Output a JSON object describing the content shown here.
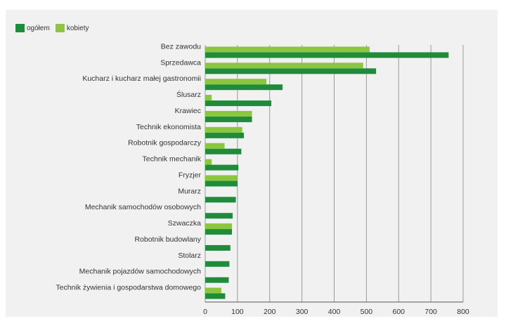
{
  "chart_data": {
    "type": "bar",
    "orientation": "horizontal",
    "categories": [
      "Bez zawodu",
      "Sprzedawca",
      "Kucharz i kucharz małej gastronomii",
      "Ślusarz",
      "Krawiec",
      "Technik ekonomista",
      "Robotnik gospodarczy",
      "Technik mechanik",
      "Fryzjer",
      "Murarz",
      "Mechanik samochodów osobowych",
      "Szwaczka",
      "Robotnik budowlany",
      "Stolarz",
      "Mechanik pojazdów samochodowych",
      "Technik żywienia i gospodarstwa domowego"
    ],
    "series": [
      {
        "name": "ogółem",
        "color": "#1e8c3a",
        "values": [
          755,
          530,
          240,
          205,
          145,
          120,
          112,
          103,
          100,
          95,
          85,
          83,
          78,
          75,
          73,
          62
        ]
      },
      {
        "name": "kobiety",
        "color": "#8cc63f",
        "values": [
          510,
          490,
          190,
          20,
          145,
          115,
          60,
          20,
          100,
          0,
          0,
          83,
          0,
          0,
          0,
          50
        ]
      }
    ],
    "xlim": [
      0,
      800
    ],
    "xticks": [
      0,
      100,
      200,
      300,
      400,
      500,
      600,
      700,
      800
    ],
    "grid": true,
    "legend_position": "top-left"
  }
}
